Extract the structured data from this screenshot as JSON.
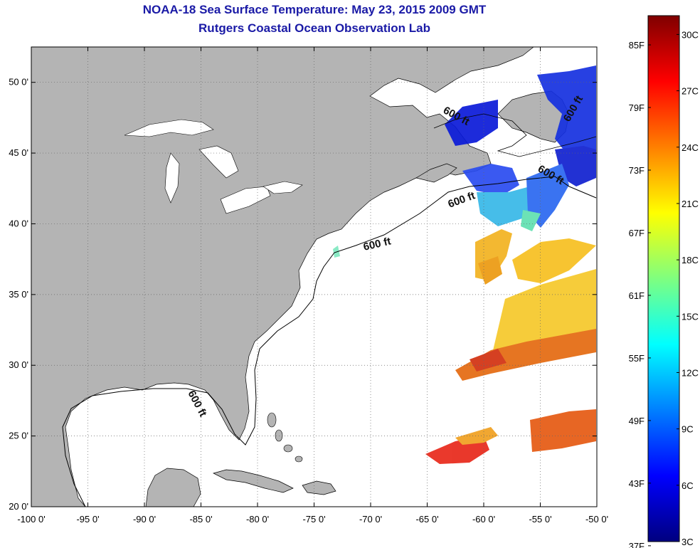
{
  "title": "NOAA-18 Sea Surface Temperature:  May 23, 2015 2009 GMT",
  "subtitle": "Rutgers Coastal Ocean Observation Lab",
  "map": {
    "lon_range": [
      -100,
      -50
    ],
    "lat_range": [
      20,
      52.5
    ],
    "lon_ticks": [
      {
        "value": -100,
        "label": "-100 0'"
      },
      {
        "value": -95,
        "label": "-95 0'"
      },
      {
        "value": -90,
        "label": "-90 0'"
      },
      {
        "value": -85,
        "label": "-85 0'"
      },
      {
        "value": -80,
        "label": "-80 0'"
      },
      {
        "value": -75,
        "label": "-75 0'"
      },
      {
        "value": -70,
        "label": "-70 0'"
      },
      {
        "value": -65,
        "label": "-65 0'"
      },
      {
        "value": -60,
        "label": "-60 0'"
      },
      {
        "value": -55,
        "label": "-55 0'"
      },
      {
        "value": -50,
        "label": "-50 0'"
      }
    ],
    "lat_ticks": [
      {
        "value": 20,
        "label": "20 0'"
      },
      {
        "value": 25,
        "label": "25 0'"
      },
      {
        "value": 30,
        "label": "30 0'"
      },
      {
        "value": 35,
        "label": "35 0'"
      },
      {
        "value": 40,
        "label": "40 0'"
      },
      {
        "value": 45,
        "label": "45 0'"
      },
      {
        "value": 50,
        "label": "50 0'"
      }
    ],
    "contour_labels": [
      "600 ft",
      "600 ft",
      "600 ft",
      "600 ft",
      "600 ft",
      "600 ft"
    ],
    "land_color": "#b4b4b4",
    "grid": "dotted"
  },
  "colorbar": {
    "min_c": 3,
    "max_c": 31,
    "fahrenheit_labels": [
      "85F",
      "79F",
      "73F",
      "67F",
      "61F",
      "55F",
      "49F",
      "43F",
      "37F"
    ],
    "celsius_labels": [
      "30C",
      "27C",
      "24C",
      "21C",
      "18C",
      "15C",
      "12C",
      "9C",
      "6C",
      "3C"
    ],
    "colormap": "jet"
  }
}
